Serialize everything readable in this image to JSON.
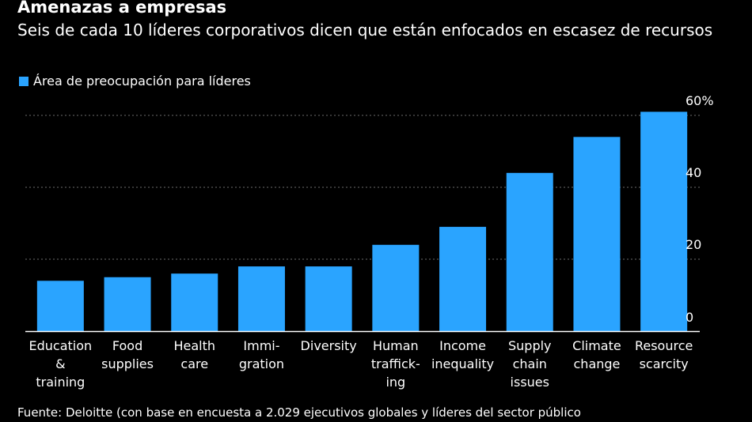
{
  "header": {
    "title": "Amenazas a empresas",
    "subtitle": "Seis de cada 10 líderes corporativos dicen que están enfocados en escasez de recursos"
  },
  "legend": {
    "label": "Área de preocupación para líderes"
  },
  "colors": {
    "bar": "#2aa4ff",
    "grid": "#6b6b6b",
    "axis": "#ffffff",
    "background": "#000000"
  },
  "chart_data": {
    "type": "bar",
    "title": "Amenazas a empresas",
    "subtitle": "Seis de cada 10 líderes corporativos dicen que están enfocados en escasez de recursos",
    "series_name": "Área de preocupación para líderes",
    "categories": [
      [
        "Education",
        "&",
        "training"
      ],
      [
        "Food",
        "supplies"
      ],
      [
        "Health",
        "care"
      ],
      [
        "Immi-",
        "gration"
      ],
      [
        "Diversity"
      ],
      [
        "Human",
        "traffick-",
        "ing"
      ],
      [
        "Income",
        "inequality"
      ],
      [
        "Supply",
        "chain",
        "issues"
      ],
      [
        "Climate",
        "change"
      ],
      [
        "Resource",
        "scarcity"
      ]
    ],
    "values": [
      14,
      15,
      16,
      18,
      18,
      24,
      29,
      44,
      54,
      61
    ],
    "ylim": [
      0,
      60
    ],
    "yticks": [
      {
        "value": 0,
        "label": "0"
      },
      {
        "value": 20,
        "label": "20"
      },
      {
        "value": 40,
        "label": "40"
      },
      {
        "value": 60,
        "label": "60%"
      }
    ],
    "grid": true,
    "y_axis_side": "right",
    "xlabel": "",
    "ylabel": ""
  },
  "footer": {
    "source": "Fuente: Deloitte (con base en encuesta a 2.029 ejecutivos globales y líderes del sector público"
  }
}
